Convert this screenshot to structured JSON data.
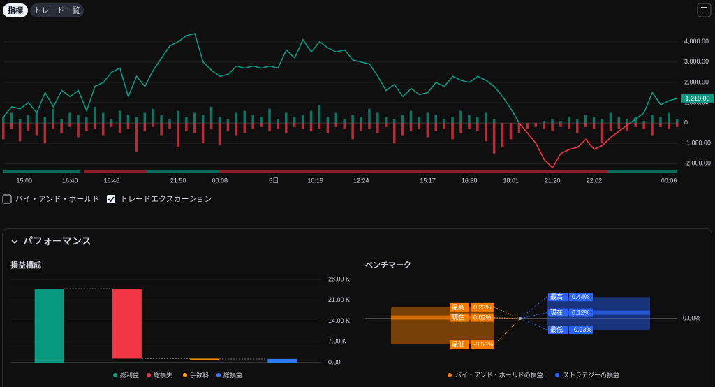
{
  "tabs": [
    "指標",
    "トレード一覧"
  ],
  "checkboxes": [
    {
      "label": "バイ・アンド・ホールド",
      "checked": false
    },
    {
      "label": "トレードエクスカーション",
      "checked": true
    }
  ],
  "panel_title": "パフォーマンス",
  "chart_data": [
    {
      "type": "combo",
      "ylim": [
        -2300,
        4850
      ],
      "yticks": [
        {
          "value": 4000,
          "label": "4,000.00"
        },
        {
          "value": 3000,
          "label": "3,000.00"
        },
        {
          "value": 2000,
          "label": "2,000.00"
        },
        {
          "value": 1000,
          "label": "1,000.00"
        },
        0,
        {
          "value": -1000,
          "label": "-1,000.00"
        },
        {
          "value": -2000,
          "label": "-2,000.00"
        }
      ],
      "xlim": [
        0,
        81
      ],
      "xticks": [
        {
          "value": 2.5,
          "label": "15:00"
        },
        {
          "value": 8,
          "label": "16:40"
        },
        {
          "value": 13,
          "label": "18:46"
        },
        {
          "value": 21,
          "label": "21:50"
        },
        {
          "value": 26,
          "label": "00:08"
        },
        {
          "value": 32.5,
          "label": "5日"
        },
        {
          "value": 37.5,
          "label": "10:19"
        },
        {
          "value": 43,
          "label": "12:24"
        },
        {
          "value": 51,
          "label": "15:17"
        },
        {
          "value": 56,
          "label": "16:38"
        },
        {
          "value": 61,
          "label": "18:01"
        },
        {
          "value": 66,
          "label": "21:20"
        },
        {
          "value": 71,
          "label": "22:02"
        },
        {
          "value": 80,
          "label": "00:06"
        }
      ],
      "grid": true,
      "last_label": {
        "value": 1210,
        "label": "1,210.00"
      },
      "series": [
        {
          "type": "line",
          "color": "#089981",
          "negative_color": "#f23645",
          "values": [
            300,
            800,
            700,
            1000,
            500,
            1500,
            800,
            1600,
            1300,
            1600,
            600,
            1800,
            2000,
            2500,
            2700,
            1300,
            2300,
            1800,
            2600,
            3200,
            3800,
            4000,
            4300,
            4400,
            3000,
            2600,
            2300,
            2400,
            2800,
            2700,
            2800,
            2700,
            2800,
            2700,
            3600,
            3200,
            4100,
            3500,
            4000,
            3700,
            3500,
            3600,
            3100,
            3000,
            2900,
            2300,
            1600,
            1900,
            1300,
            1700,
            1400,
            1500,
            2000,
            1800,
            2300,
            2100,
            2000,
            2300,
            2100,
            1800,
            1300,
            700,
            0,
            -500,
            -1000,
            -1800,
            -2200,
            -1500,
            -1300,
            -1200,
            -800,
            -1300,
            -1100,
            -700,
            -400,
            -100,
            200,
            500,
            1500,
            900,
            1100,
            1210
          ]
        },
        {
          "type": "bar",
          "color": "#089981",
          "values": [
            300,
            500,
            200,
            400,
            600,
            300,
            700,
            200,
            500,
            400,
            300,
            800,
            500,
            200,
            600,
            400,
            300,
            500,
            700,
            400,
            200,
            600,
            300,
            500,
            400,
            800,
            300,
            200,
            500,
            600,
            400,
            300,
            700,
            200,
            500,
            300,
            400,
            600,
            900,
            300,
            500,
            200,
            400,
            300,
            700,
            500,
            300,
            200,
            400,
            600,
            300,
            500,
            400,
            200,
            300,
            600,
            400,
            300,
            500,
            200,
            0,
            0,
            0,
            0,
            0,
            100,
            200,
            100,
            300,
            200,
            400,
            300,
            200,
            500,
            300,
            200,
            300,
            100,
            400,
            300,
            500,
            200
          ]
        },
        {
          "type": "bar",
          "color": "#f23645",
          "values": [
            -800,
            -300,
            -900,
            -400,
            -600,
            -1000,
            -300,
            -500,
            -200,
            -700,
            -400,
            -300,
            -600,
            -200,
            -500,
            -300,
            -1400,
            -400,
            -200,
            -600,
            -300,
            -1200,
            -400,
            -500,
            -1000,
            -300,
            -1100,
            -400,
            -600,
            -500,
            -300,
            -200,
            -400,
            -300,
            -500,
            -200,
            -300,
            -400,
            -300,
            -500,
            -200,
            -300,
            -800,
            -400,
            -300,
            -500,
            -200,
            -1000,
            -600,
            -400,
            -300,
            -700,
            -400,
            -300,
            -800,
            -500,
            -300,
            -400,
            -900,
            -1500,
            -1200,
            -800,
            -500,
            -300,
            -200,
            -300,
            -400,
            -200,
            -300,
            -500,
            -200,
            -300,
            -1000,
            -400,
            -300,
            -400,
            -200,
            -300,
            -600,
            -200,
            -300,
            -200
          ]
        }
      ]
    },
    {
      "type": "waterfall",
      "title": "損益構成",
      "categories": [
        "総利益",
        "総損失",
        "手数料",
        "総損益"
      ],
      "values": [
        24900,
        23590,
        100,
        1210
      ],
      "kinds": [
        "increase",
        "decrease",
        "decrease",
        "total"
      ],
      "colors": [
        "#089981",
        "#f23645",
        "#ff9800",
        "#3179f5"
      ],
      "ylim": [
        0,
        28000
      ],
      "yticks": [
        {
          "value": 28000,
          "label": "28.00 K"
        },
        {
          "value": 21000,
          "label": "21.00 K"
        },
        {
          "value": 14000,
          "label": "14.00 K"
        },
        {
          "value": 7000,
          "label": "7.00 K"
        },
        {
          "value": 0,
          "label": "0.00"
        }
      ],
      "grid": true
    },
    {
      "type": "benchmark",
      "title": "ベンチマーク",
      "categories": [
        "最高",
        "現在",
        "最低"
      ],
      "ylim": [
        -0.6,
        0.6
      ],
      "yticks": [
        {
          "value": 0,
          "label": "0.00%"
        }
      ],
      "series": [
        {
          "name": "バイ・アンド・ホールドの損益",
          "color": "#f57c00",
          "values": [
            0.23,
            0.02,
            -0.53
          ],
          "value_labels": [
            "0.23%",
            "0.02%",
            "-0.53%"
          ]
        },
        {
          "name": "ストラテジーの損益",
          "color": "#2962ff",
          "values": [
            0.44,
            0.12,
            -0.23
          ],
          "value_labels": [
            "0.44%",
            "0.12%",
            "-0.23%"
          ]
        }
      ]
    }
  ]
}
